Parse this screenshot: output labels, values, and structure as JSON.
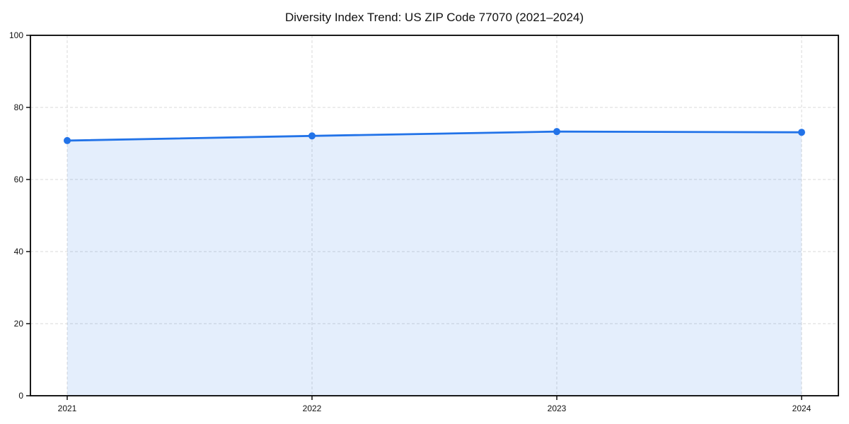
{
  "chart_data": {
    "type": "area",
    "title": "Diversity Index Trend: US ZIP Code 77070 (2021–2024)",
    "xlabel": "",
    "ylabel": "",
    "categories": [
      "2021",
      "2022",
      "2023",
      "2024"
    ],
    "series": [
      {
        "name": "Diversity Index",
        "values": [
          70.8,
          72.1,
          73.3,
          73.1
        ]
      }
    ],
    "ylim": [
      0,
      100
    ],
    "yticks": [
      0,
      20,
      40,
      60,
      80,
      100
    ],
    "grid": true,
    "grid_style": "dashed",
    "legend": false,
    "marker": "circle",
    "colors": {
      "line": "#2273e8",
      "marker": "#2273e8",
      "fill": "#2273e8",
      "fill_opacity": 0.12,
      "grid": "#d9d9d9",
      "frame": "#000000",
      "text": "#111111",
      "background": "#ffffff"
    }
  }
}
